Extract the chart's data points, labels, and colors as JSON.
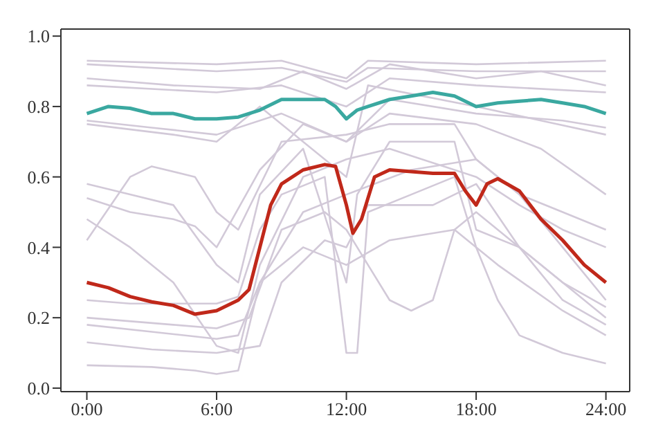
{
  "chart_data": {
    "type": "line",
    "xlim": [
      -1.2,
      25.1
    ],
    "ylim": [
      -0.01,
      1.02
    ],
    "xticks": [
      {
        "value": 0,
        "label": "0:00"
      },
      {
        "value": 6,
        "label": "6:00"
      },
      {
        "value": 12,
        "label": "12:00"
      },
      {
        "value": 18,
        "label": "18:00"
      },
      {
        "value": 24,
        "label": "24:00"
      }
    ],
    "yticks": [
      {
        "value": 0,
        "label": "0.0"
      },
      {
        "value": 0.2,
        "label": "0.2"
      },
      {
        "value": 0.4,
        "label": "0.4"
      },
      {
        "value": 0.6,
        "label": "0.6"
      },
      {
        "value": 0.8,
        "label": "0.8"
      },
      {
        "value": 1,
        "label": "1.0"
      }
    ],
    "grid": false,
    "marker": "none",
    "line_style": "solid",
    "series": [
      {
        "color": "#d2c9d8",
        "x": [
          0,
          6,
          9,
          12,
          13,
          18,
          24
        ],
        "values": [
          0.93,
          0.92,
          0.93,
          0.88,
          0.93,
          0.92,
          0.93
        ]
      },
      {
        "color": "#d2c9d8",
        "x": [
          0,
          6,
          9,
          12,
          13,
          18,
          24
        ],
        "values": [
          0.92,
          0.9,
          0.91,
          0.87,
          0.91,
          0.9,
          0.9
        ]
      },
      {
        "color": "#d2c9d8",
        "x": [
          0,
          4,
          8,
          10,
          12,
          14,
          18,
          21,
          24
        ],
        "values": [
          0.88,
          0.86,
          0.85,
          0.9,
          0.85,
          0.92,
          0.88,
          0.9,
          0.86
        ]
      },
      {
        "color": "#d2c9d8",
        "x": [
          0,
          6,
          9,
          12,
          14,
          18,
          24
        ],
        "values": [
          0.86,
          0.84,
          0.86,
          0.8,
          0.88,
          0.86,
          0.84
        ]
      },
      {
        "color": "#d2c9d8",
        "x": [
          0,
          3,
          6,
          9,
          12,
          14,
          18,
          22,
          24
        ],
        "values": [
          0.76,
          0.74,
          0.72,
          0.78,
          0.7,
          0.82,
          0.78,
          0.76,
          0.74
        ]
      },
      {
        "color": "#d2c9d8",
        "x": [
          0,
          4,
          6,
          8,
          12,
          13,
          18,
          24
        ],
        "values": [
          0.75,
          0.72,
          0.7,
          0.8,
          0.6,
          0.86,
          0.8,
          0.72
        ]
      },
      {
        "color": "#d2c9d8",
        "x": [
          0,
          2,
          3,
          5,
          6,
          7,
          9,
          12,
          14,
          17,
          18,
          20,
          22,
          24
        ],
        "values": [
          0.42,
          0.6,
          0.63,
          0.6,
          0.5,
          0.45,
          0.7,
          0.72,
          0.75,
          0.75,
          0.65,
          0.55,
          0.5,
          0.45
        ]
      },
      {
        "color": "#d2c9d8",
        "x": [
          0,
          2,
          4,
          6,
          7,
          8,
          10,
          12,
          12.5,
          14,
          17,
          18,
          20,
          22,
          24
        ],
        "values": [
          0.58,
          0.55,
          0.52,
          0.35,
          0.3,
          0.55,
          0.68,
          0.3,
          0.55,
          0.7,
          0.7,
          0.45,
          0.4,
          0.3,
          0.23
        ]
      },
      {
        "color": "#d2c9d8",
        "x": [
          0,
          2,
          4,
          6,
          7,
          8,
          9,
          11,
          12,
          12.5,
          13,
          15,
          17,
          18,
          19,
          20,
          22,
          24
        ],
        "values": [
          0.25,
          0.24,
          0.24,
          0.24,
          0.26,
          0.45,
          0.55,
          0.6,
          0.1,
          0.1,
          0.5,
          0.55,
          0.6,
          0.4,
          0.25,
          0.15,
          0.1,
          0.07
        ]
      },
      {
        "color": "#d2c9d8",
        "x": [
          0,
          4,
          6,
          7.5,
          9,
          11,
          12,
          13,
          14,
          15,
          16,
          17,
          18,
          20,
          22,
          24
        ],
        "values": [
          0.2,
          0.18,
          0.17,
          0.2,
          0.45,
          0.5,
          0.45,
          0.35,
          0.25,
          0.22,
          0.25,
          0.45,
          0.5,
          0.4,
          0.3,
          0.2
        ]
      },
      {
        "color": "#d2c9d8",
        "x": [
          0,
          3,
          6,
          7,
          8,
          10,
          12,
          14,
          17,
          19,
          22,
          24
        ],
        "values": [
          0.18,
          0.16,
          0.14,
          0.15,
          0.3,
          0.4,
          0.35,
          0.42,
          0.45,
          0.35,
          0.22,
          0.15
        ]
      },
      {
        "color": "#d2c9d8",
        "x": [
          0,
          3,
          6,
          8,
          9,
          11,
          12,
          13,
          16,
          18,
          20,
          22,
          24
        ],
        "values": [
          0.13,
          0.11,
          0.1,
          0.12,
          0.3,
          0.42,
          0.4,
          0.52,
          0.52,
          0.58,
          0.4,
          0.25,
          0.18
        ]
      },
      {
        "color": "#d2c9d8",
        "x": [
          0,
          3,
          5,
          6,
          7,
          8,
          10,
          12,
          15,
          18,
          20,
          22,
          24
        ],
        "values": [
          0.065,
          0.06,
          0.05,
          0.04,
          0.05,
          0.3,
          0.5,
          0.55,
          0.62,
          0.65,
          0.55,
          0.4,
          0.25
        ]
      },
      {
        "color": "#d2c9d8",
        "x": [
          0,
          2,
          4,
          6,
          7,
          8,
          10,
          12,
          14,
          18,
          20,
          22,
          24
        ],
        "values": [
          0.48,
          0.4,
          0.3,
          0.12,
          0.1,
          0.35,
          0.6,
          0.65,
          0.68,
          0.6,
          0.52,
          0.45,
          0.4
        ]
      },
      {
        "color": "#d2c9d8",
        "x": [
          0,
          2,
          4,
          5,
          6,
          8,
          10,
          12,
          14,
          18,
          21,
          24
        ],
        "values": [
          0.54,
          0.5,
          0.48,
          0.46,
          0.4,
          0.62,
          0.75,
          0.7,
          0.78,
          0.75,
          0.68,
          0.55
        ]
      },
      {
        "color": "#3aa8a0",
        "x": [
          0,
          1,
          2,
          3,
          4,
          5,
          6,
          7,
          8,
          9,
          10,
          11,
          11.5,
          12,
          12.5,
          13,
          14,
          15,
          16,
          17,
          18,
          19,
          20,
          21,
          22,
          23,
          24
        ],
        "values": [
          0.78,
          0.8,
          0.795,
          0.78,
          0.78,
          0.765,
          0.765,
          0.77,
          0.79,
          0.82,
          0.82,
          0.82,
          0.8,
          0.765,
          0.79,
          0.8,
          0.82,
          0.83,
          0.84,
          0.83,
          0.8,
          0.81,
          0.815,
          0.82,
          0.81,
          0.8,
          0.78
        ]
      },
      {
        "color": "#c0281a",
        "x": [
          0,
          1,
          2,
          3,
          4,
          5,
          6,
          7,
          7.5,
          8,
          8.5,
          9,
          10,
          11,
          11.5,
          12,
          12.3,
          12.7,
          13.3,
          14,
          15,
          16,
          17,
          17.5,
          18,
          18.5,
          19,
          20,
          21,
          22,
          23,
          24
        ],
        "values": [
          0.3,
          0.285,
          0.26,
          0.245,
          0.235,
          0.21,
          0.22,
          0.25,
          0.28,
          0.4,
          0.52,
          0.58,
          0.62,
          0.635,
          0.63,
          0.52,
          0.44,
          0.48,
          0.6,
          0.62,
          0.615,
          0.61,
          0.61,
          0.56,
          0.52,
          0.58,
          0.595,
          0.56,
          0.48,
          0.42,
          0.35,
          0.3
        ]
      }
    ]
  }
}
